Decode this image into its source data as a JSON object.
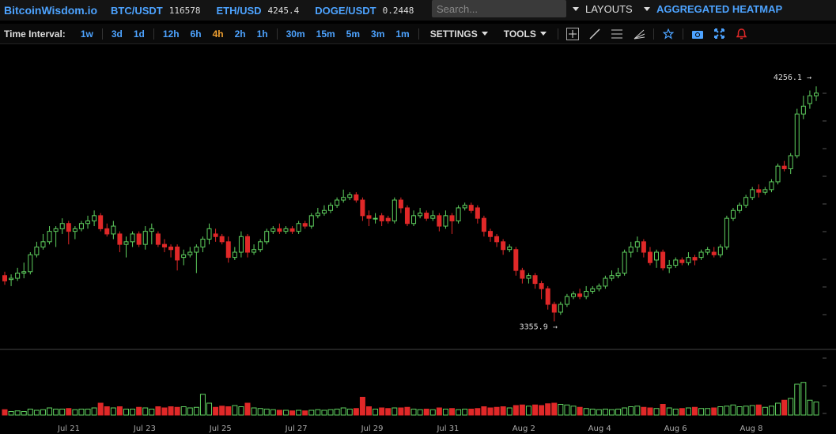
{
  "brand": "BitcoinWisdom.io",
  "tickers": [
    {
      "symbol": "BTC/USDT",
      "price": "116578"
    },
    {
      "symbol": "ETH/USD",
      "price": "4245.4"
    },
    {
      "symbol": "DOGE/USDT",
      "price": "0.2448"
    }
  ],
  "search": {
    "placeholder": "Search..."
  },
  "layouts_label": "LAYOUTS",
  "heatmap_label": "AGGREGATED HEATMAP",
  "time_interval_label": "Time Interval:",
  "intervals": [
    "1w",
    "3d",
    "1d",
    "12h",
    "6h",
    "4h",
    "2h",
    "1h",
    "30m",
    "15m",
    "5m",
    "3m",
    "1m"
  ],
  "active_interval": "4h",
  "settings_label": "SETTINGS",
  "tools_label": "TOOLS",
  "icons": [
    "crosshair-icon",
    "trendline-icon",
    "horizontal-lines-icon",
    "fan-icon",
    "star-icon",
    "camera-icon",
    "fullscreen-icon",
    "alert-bell-icon"
  ],
  "colors": {
    "up": "#5fd05f",
    "down": "#e02828",
    "accent": "#4da3ff",
    "active": "#f0a030"
  },
  "chart_data": {
    "type": "candlestick",
    "x_tick_labels": [
      "Jul 21",
      "Jul 23",
      "Jul 25",
      "Jul 27",
      "Jul 29",
      "Jul 31",
      "Aug 2",
      "Aug 4",
      "Aug 6",
      "Aug 8"
    ],
    "high_label": "4256.1",
    "low_label": "3355.9",
    "ylim": [
      3320,
      4290
    ],
    "candles": [
      [
        3530,
        3510,
        3545,
        3495,
        0.09
      ],
      [
        3515,
        3520,
        3535,
        3490,
        0.06
      ],
      [
        3520,
        3540,
        3560,
        3510,
        0.07
      ],
      [
        3540,
        3545,
        3580,
        3520,
        0.06
      ],
      [
        3545,
        3610,
        3620,
        3535,
        0.1
      ],
      [
        3610,
        3640,
        3660,
        3600,
        0.08
      ],
      [
        3640,
        3660,
        3690,
        3630,
        0.09
      ],
      [
        3660,
        3700,
        3720,
        3650,
        0.12
      ],
      [
        3700,
        3710,
        3720,
        3640,
        0.1
      ],
      [
        3710,
        3730,
        3750,
        3690,
        0.1
      ],
      [
        3730,
        3700,
        3740,
        3650,
        0.11
      ],
      [
        3700,
        3710,
        3720,
        3670,
        0.09
      ],
      [
        3710,
        3730,
        3740,
        3700,
        0.1
      ],
      [
        3730,
        3740,
        3760,
        3710,
        0.1
      ],
      [
        3740,
        3760,
        3780,
        3720,
        0.12
      ],
      [
        3760,
        3710,
        3770,
        3700,
        0.2
      ],
      [
        3710,
        3690,
        3730,
        3680,
        0.14
      ],
      [
        3690,
        3720,
        3740,
        3670,
        0.12
      ],
      [
        3690,
        3650,
        3700,
        3620,
        0.14
      ],
      [
        3650,
        3660,
        3680,
        3600,
        0.1
      ],
      [
        3660,
        3690,
        3700,
        3640,
        0.1
      ],
      [
        3690,
        3650,
        3700,
        3640,
        0.13
      ],
      [
        3650,
        3700,
        3720,
        3630,
        0.12
      ],
      [
        3700,
        3710,
        3730,
        3650,
        0.1
      ],
      [
        3690,
        3650,
        3700,
        3640,
        0.14
      ],
      [
        3650,
        3640,
        3670,
        3620,
        0.12
      ],
      [
        3640,
        3630,
        3650,
        3600,
        0.14
      ],
      [
        3640,
        3590,
        3650,
        3550,
        0.13
      ],
      [
        3600,
        3610,
        3630,
        3570,
        0.14
      ],
      [
        3610,
        3620,
        3640,
        3600,
        0.12
      ],
      [
        3620,
        3640,
        3650,
        3540,
        0.13
      ],
      [
        3640,
        3670,
        3680,
        3620,
        0.35
      ],
      [
        3670,
        3710,
        3730,
        3650,
        0.2
      ],
      [
        3690,
        3680,
        3710,
        3660,
        0.13
      ],
      [
        3680,
        3660,
        3690,
        3650,
        0.15
      ],
      [
        3660,
        3600,
        3680,
        3580,
        0.14
      ],
      [
        3600,
        3620,
        3640,
        3590,
        0.16
      ],
      [
        3620,
        3680,
        3700,
        3600,
        0.14
      ],
      [
        3680,
        3620,
        3690,
        3600,
        0.2
      ],
      [
        3620,
        3630,
        3650,
        3610,
        0.12
      ],
      [
        3630,
        3660,
        3670,
        3620,
        0.11
      ],
      [
        3660,
        3700,
        3710,
        3650,
        0.1
      ],
      [
        3700,
        3710,
        3720,
        3690,
        0.09
      ],
      [
        3710,
        3700,
        3730,
        3690,
        0.08
      ],
      [
        3700,
        3710,
        3720,
        3690,
        0.08
      ],
      [
        3710,
        3700,
        3720,
        3690,
        0.07
      ],
      [
        3700,
        3730,
        3740,
        3690,
        0.08
      ],
      [
        3730,
        3720,
        3740,
        3710,
        0.07
      ],
      [
        3720,
        3760,
        3770,
        3710,
        0.08
      ],
      [
        3760,
        3770,
        3790,
        3750,
        0.09
      ],
      [
        3770,
        3780,
        3800,
        3760,
        0.08
      ],
      [
        3780,
        3800,
        3810,
        3770,
        0.09
      ],
      [
        3800,
        3820,
        3830,
        3790,
        0.1
      ],
      [
        3820,
        3830,
        3860,
        3810,
        0.12
      ],
      [
        3830,
        3840,
        3850,
        3820,
        0.1
      ],
      [
        3840,
        3820,
        3850,
        3810,
        0.11
      ],
      [
        3820,
        3760,
        3830,
        3740,
        0.3
      ],
      [
        3760,
        3750,
        3780,
        3720,
        0.14
      ],
      [
        3750,
        3750,
        3770,
        3730,
        0.1
      ],
      [
        3760,
        3740,
        3770,
        3720,
        0.12
      ],
      [
        3750,
        3740,
        3760,
        3730,
        0.11
      ],
      [
        3740,
        3820,
        3830,
        3730,
        0.12
      ],
      [
        3820,
        3790,
        3830,
        3770,
        0.12
      ],
      [
        3790,
        3730,
        3800,
        3720,
        0.13
      ],
      [
        3730,
        3760,
        3780,
        3720,
        0.1
      ],
      [
        3760,
        3770,
        3790,
        3750,
        0.09
      ],
      [
        3770,
        3750,
        3780,
        3740,
        0.1
      ],
      [
        3750,
        3760,
        3780,
        3740,
        0.09
      ],
      [
        3760,
        3720,
        3770,
        3700,
        0.12
      ],
      [
        3720,
        3760,
        3780,
        3710,
        0.1
      ],
      [
        3760,
        3740,
        3770,
        3690,
        0.11
      ],
      [
        3740,
        3790,
        3800,
        3730,
        0.09
      ],
      [
        3790,
        3800,
        3810,
        3780,
        0.1
      ],
      [
        3800,
        3780,
        3810,
        3770,
        0.1
      ],
      [
        3790,
        3750,
        3800,
        3730,
        0.11
      ],
      [
        3750,
        3700,
        3760,
        3680,
        0.14
      ],
      [
        3700,
        3680,
        3710,
        3660,
        0.12
      ],
      [
        3680,
        3660,
        3690,
        3640,
        0.13
      ],
      [
        3660,
        3630,
        3670,
        3610,
        0.14
      ],
      [
        3630,
        3640,
        3650,
        3620,
        0.12
      ],
      [
        3630,
        3550,
        3640,
        3530,
        0.16
      ],
      [
        3550,
        3520,
        3560,
        3500,
        0.17
      ],
      [
        3520,
        3530,
        3540,
        3500,
        0.15
      ],
      [
        3530,
        3500,
        3540,
        3480,
        0.17
      ],
      [
        3500,
        3480,
        3510,
        3440,
        0.16
      ],
      [
        3480,
        3420,
        3490,
        3400,
        0.19
      ],
      [
        3420,
        3390,
        3430,
        3355,
        0.2
      ],
      [
        3390,
        3420,
        3430,
        3380,
        0.18
      ],
      [
        3420,
        3450,
        3460,
        3410,
        0.17
      ],
      [
        3450,
        3460,
        3470,
        3440,
        0.15
      ],
      [
        3460,
        3450,
        3480,
        3440,
        0.13
      ],
      [
        3450,
        3470,
        3490,
        3440,
        0.11
      ],
      [
        3470,
        3480,
        3490,
        3460,
        0.1
      ],
      [
        3480,
        3490,
        3500,
        3470,
        0.09
      ],
      [
        3490,
        3520,
        3530,
        3480,
        0.1
      ],
      [
        3520,
        3530,
        3550,
        3510,
        0.09
      ],
      [
        3530,
        3540,
        3560,
        3520,
        0.1
      ],
      [
        3540,
        3620,
        3630,
        3530,
        0.12
      ],
      [
        3620,
        3640,
        3660,
        3600,
        0.14
      ],
      [
        3640,
        3660,
        3680,
        3620,
        0.15
      ],
      [
        3660,
        3620,
        3670,
        3600,
        0.13
      ],
      [
        3620,
        3580,
        3640,
        3570,
        0.12
      ],
      [
        3590,
        3620,
        3630,
        3560,
        0.11
      ],
      [
        3620,
        3560,
        3630,
        3550,
        0.18
      ],
      [
        3560,
        3570,
        3590,
        3540,
        0.12
      ],
      [
        3570,
        3590,
        3600,
        3560,
        0.1
      ],
      [
        3590,
        3580,
        3600,
        3570,
        0.11
      ],
      [
        3580,
        3600,
        3620,
        3570,
        0.12
      ],
      [
        3600,
        3590,
        3610,
        3570,
        0.13
      ],
      [
        3600,
        3620,
        3630,
        3590,
        0.11
      ],
      [
        3620,
        3630,
        3640,
        3610,
        0.11
      ],
      [
        3620,
        3610,
        3640,
        3600,
        0.12
      ],
      [
        3610,
        3640,
        3650,
        3600,
        0.14
      ],
      [
        3640,
        3750,
        3760,
        3630,
        0.15
      ],
      [
        3750,
        3780,
        3790,
        3740,
        0.17
      ],
      [
        3780,
        3800,
        3810,
        3770,
        0.14
      ],
      [
        3800,
        3830,
        3840,
        3790,
        0.15
      ],
      [
        3830,
        3860,
        3870,
        3820,
        0.16
      ],
      [
        3860,
        3850,
        3880,
        3830,
        0.17
      ],
      [
        3850,
        3860,
        3870,
        3840,
        0.13
      ],
      [
        3860,
        3890,
        3900,
        3850,
        0.15
      ],
      [
        3890,
        3950,
        3960,
        3880,
        0.2
      ],
      [
        3950,
        3940,
        3970,
        3930,
        0.25
      ],
      [
        3940,
        3990,
        4000,
        3920,
        0.28
      ],
      [
        3990,
        4150,
        4170,
        3980,
        0.52
      ],
      [
        4150,
        4180,
        4220,
        4130,
        0.55
      ],
      [
        4190,
        4220,
        4240,
        4170,
        0.25
      ],
      [
        4220,
        4230,
        4256,
        4200,
        0.22
      ]
    ]
  }
}
